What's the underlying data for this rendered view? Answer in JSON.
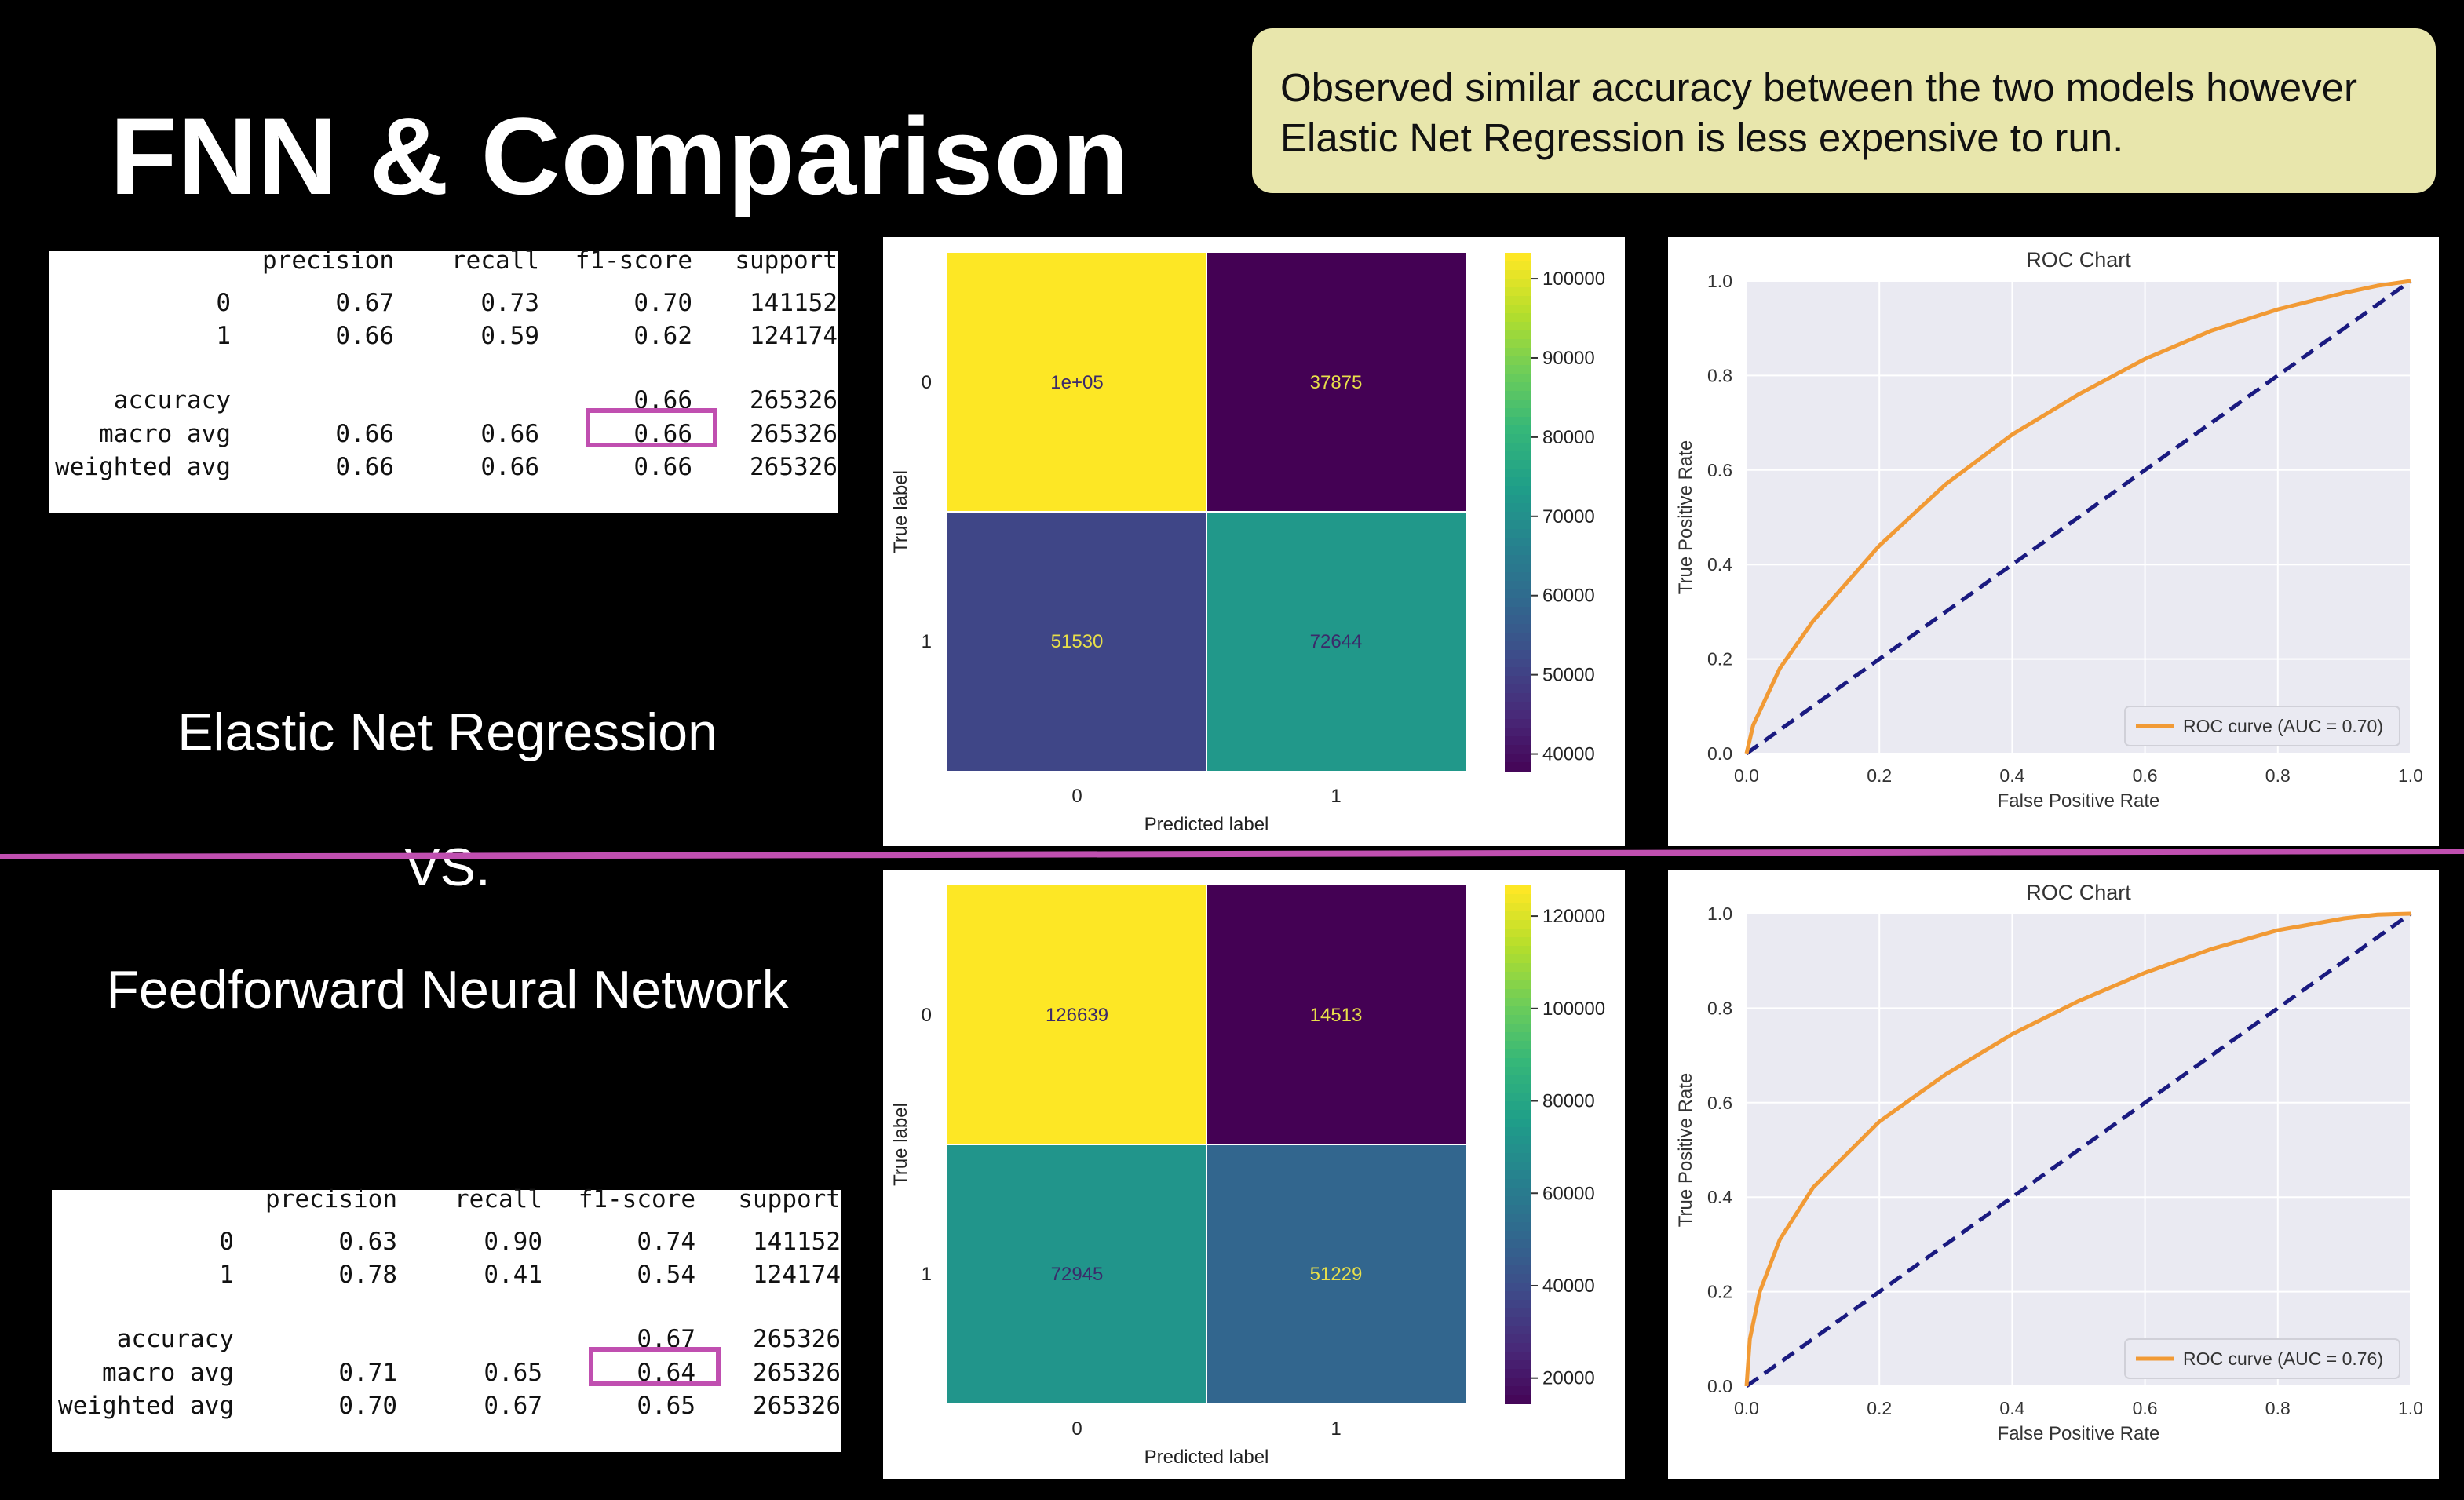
{
  "slide": {
    "title": "FNN & Comparison",
    "note_lines": [
      "Observed similar accuracy between the two models however",
      "Elastic Net Regression is less expensive to run."
    ],
    "label_en": "Elastic Net Regression",
    "label_vs": "VS.",
    "label_fnn": "Feedforward Neural Network",
    "colors": {
      "note_bg": "#e8e6ac",
      "divider": "#c04fb0",
      "roc_line": "#f19a35",
      "diag": "#1a1a80"
    }
  },
  "reports": [
    {
      "header": [
        "precision",
        "recall",
        "f1-score",
        "support"
      ],
      "rows": [
        {
          "label": "0",
          "precision": "0.67",
          "recall": "0.73",
          "f1": "0.70",
          "support": "141152"
        },
        {
          "label": "1",
          "precision": "0.66",
          "recall": "0.59",
          "f1": "0.62",
          "support": "124174"
        },
        {
          "label": "accuracy",
          "precision": "",
          "recall": "",
          "f1": "0.66",
          "support": "265326"
        },
        {
          "label": "macro avg",
          "precision": "0.66",
          "recall": "0.66",
          "f1": "0.66",
          "support": "265326"
        },
        {
          "label": "weighted avg",
          "precision": "0.66",
          "recall": "0.66",
          "f1": "0.66",
          "support": "265326"
        }
      ]
    },
    {
      "header": [
        "precision",
        "recall",
        "f1-score",
        "support"
      ],
      "rows": [
        {
          "label": "0",
          "precision": "0.63",
          "recall": "0.90",
          "f1": "0.74",
          "support": "141152"
        },
        {
          "label": "1",
          "precision": "0.78",
          "recall": "0.41",
          "f1": "0.54",
          "support": "124174"
        },
        {
          "label": "accuracy",
          "precision": "",
          "recall": "",
          "f1": "0.67",
          "support": "265326"
        },
        {
          "label": "macro avg",
          "precision": "0.71",
          "recall": "0.65",
          "f1": "0.64",
          "support": "265326"
        },
        {
          "label": "weighted avg",
          "precision": "0.70",
          "recall": "0.67",
          "f1": "0.65",
          "support": "265326"
        }
      ]
    }
  ],
  "chart_data": [
    {
      "type": "heatmap",
      "xlabel": "Predicted label",
      "ylabel": "True label",
      "x_categories": [
        "0",
        "1"
      ],
      "y_categories": [
        "0",
        "1"
      ],
      "values": [
        [
          103277,
          37875
        ],
        [
          51530,
          72644
        ]
      ],
      "cell_labels": [
        [
          "1e+05",
          "37875"
        ],
        [
          "51530",
          "72644"
        ]
      ],
      "colorbar": {
        "min": 37875,
        "max": 103277,
        "ticks": [
          "40000",
          "50000",
          "60000",
          "70000",
          "80000",
          "90000",
          "100000"
        ],
        "tick_values": [
          40000,
          50000,
          60000,
          70000,
          80000,
          90000,
          100000
        ]
      },
      "colormap": "viridis"
    },
    {
      "type": "line",
      "title": "ROC Chart",
      "xlabel": "False Positive Rate",
      "ylabel": "True Positive Rate",
      "xlim": [
        0,
        1
      ],
      "ylim": [
        0,
        1
      ],
      "x_ticks": [
        "0.0",
        "0.2",
        "0.4",
        "0.6",
        "0.8",
        "1.0"
      ],
      "y_ticks": [
        "0.0",
        "0.2",
        "0.4",
        "0.6",
        "0.8",
        "1.0"
      ],
      "grid": true,
      "legend_position": "lower right",
      "series": [
        {
          "name": "ROC curve (AUC = 0.70)",
          "color": "#f19a35",
          "x": [
            0,
            0.01,
            0.05,
            0.1,
            0.2,
            0.3,
            0.4,
            0.5,
            0.6,
            0.7,
            0.8,
            0.9,
            0.95,
            1.0
          ],
          "y": [
            0,
            0.06,
            0.18,
            0.28,
            0.44,
            0.57,
            0.675,
            0.76,
            0.835,
            0.895,
            0.94,
            0.975,
            0.99,
            1.0
          ]
        },
        {
          "name": "",
          "color": "#1a1a80",
          "dashed": true,
          "x": [
            0,
            1
          ],
          "y": [
            0,
            1
          ]
        }
      ]
    },
    {
      "type": "heatmap",
      "xlabel": "Predicted label",
      "ylabel": "True label",
      "x_categories": [
        "0",
        "1"
      ],
      "y_categories": [
        "0",
        "1"
      ],
      "values": [
        [
          126639,
          14513
        ],
        [
          72945,
          51229
        ]
      ],
      "cell_labels": [
        [
          "126639",
          "14513"
        ],
        [
          "72945",
          "51229"
        ]
      ],
      "colorbar": {
        "min": 14513,
        "max": 126639,
        "ticks": [
          "20000",
          "40000",
          "60000",
          "80000",
          "100000",
          "120000"
        ],
        "tick_values": [
          20000,
          40000,
          60000,
          80000,
          100000,
          120000
        ]
      },
      "colormap": "viridis"
    },
    {
      "type": "line",
      "title": "ROC Chart",
      "xlabel": "False Positive Rate",
      "ylabel": "True Positive Rate",
      "xlim": [
        0,
        1
      ],
      "ylim": [
        0,
        1
      ],
      "x_ticks": [
        "0.0",
        "0.2",
        "0.4",
        "0.6",
        "0.8",
        "1.0"
      ],
      "y_ticks": [
        "0.0",
        "0.2",
        "0.4",
        "0.6",
        "0.8",
        "1.0"
      ],
      "grid": true,
      "legend_position": "lower right",
      "series": [
        {
          "name": "ROC curve (AUC = 0.76)",
          "color": "#f19a35",
          "x": [
            0,
            0.005,
            0.02,
            0.05,
            0.1,
            0.2,
            0.3,
            0.4,
            0.5,
            0.6,
            0.7,
            0.8,
            0.9,
            0.95,
            1.0
          ],
          "y": [
            0,
            0.1,
            0.2,
            0.31,
            0.42,
            0.56,
            0.66,
            0.745,
            0.815,
            0.875,
            0.925,
            0.965,
            0.99,
            0.998,
            1.0
          ]
        },
        {
          "name": "",
          "color": "#1a1a80",
          "dashed": true,
          "x": [
            0,
            1
          ],
          "y": [
            0,
            1
          ]
        }
      ]
    }
  ]
}
